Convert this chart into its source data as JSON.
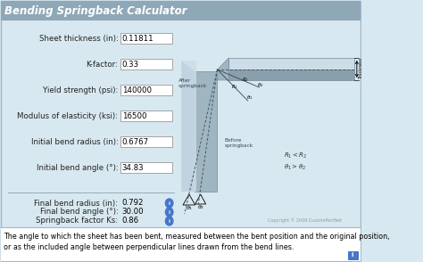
{
  "title": "Bending Springback Calculator",
  "title_bg": "#8fa8b8",
  "title_color": "white",
  "title_fontsize": 8.5,
  "bg_color": "#d8e8f0",
  "border_color": "#a0b8cc",
  "input_fields": [
    {
      "label": "Sheet thickness (in):",
      "value": "0.11811"
    },
    {
      "label": "K-factor:",
      "value": "0.33"
    },
    {
      "label": "Yield strength (psi):",
      "value": "140000"
    },
    {
      "label": "Modulus of elasticity (ksi):",
      "value": "16500"
    },
    {
      "label": "Initial bend radius (in):",
      "value": "0.6767"
    },
    {
      "label": "Initial bend angle (°):",
      "value": "34.83"
    }
  ],
  "output_fields": [
    {
      "label": "Final bend radius (in):",
      "value": "0.792"
    },
    {
      "label": "Final bend angle (°):",
      "value": "30.00"
    },
    {
      "label": "Springback factor Ks:",
      "value": "0.86"
    }
  ],
  "footer_line1": "The angle to which the sheet has been bent, measured between the bent position and the original position,",
  "footer_line2": "or as the included angle between perpendicular lines drawn from the bend lines.",
  "footer_bg": "white",
  "copyright": "Copyright © 2009 CustomPartNet",
  "input_box_color": "white",
  "input_box_border": "#999999",
  "separator_color": "#99aabb",
  "label_fontsize": 6.2,
  "value_fontsize": 6.2,
  "footer_fontsize": 5.8,
  "icon_color": "#4477cc",
  "gray_dark": "#8a9fac",
  "gray_mid": "#9fb5c0",
  "gray_light": "#b8cdd8",
  "gray_lighter": "#ccdde8"
}
